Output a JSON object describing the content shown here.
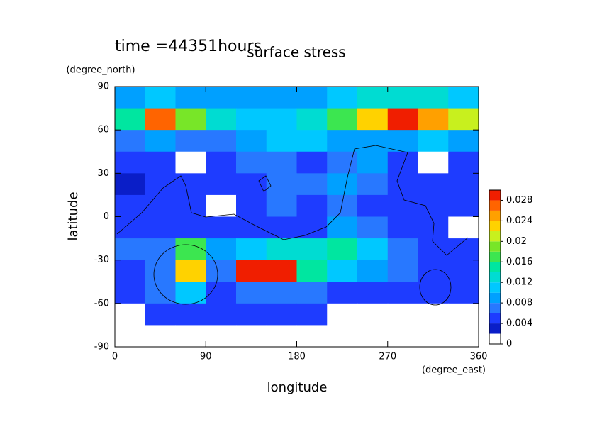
{
  "chart_data": {
    "type": "heatmap",
    "title": "time =44351hours",
    "subtitle": "surface stress",
    "x_label": "longitude",
    "x_unit": "(degree_east)",
    "y_label": "latitude",
    "y_unit": "(degree_north)",
    "xlim": [
      0,
      360
    ],
    "xticks": [
      0,
      90,
      180,
      270,
      360
    ],
    "ylim": [
      -90,
      90
    ],
    "yticks": [
      -90,
      -60,
      -30,
      0,
      30,
      60,
      90
    ],
    "x_edges": [
      0,
      30,
      60,
      90,
      120,
      150,
      180,
      210,
      240,
      270,
      300,
      330,
      360
    ],
    "y_edges": [
      90,
      75,
      60,
      45,
      30,
      15,
      0,
      -15,
      -30,
      -45,
      -60,
      -75,
      -90
    ],
    "values": [
      [
        0.008,
        0.01,
        0.008,
        0.008,
        0.008,
        0.008,
        0.008,
        0.01,
        0.012,
        0.012,
        0.012,
        0.01
      ],
      [
        0.014,
        0.026,
        0.018,
        0.012,
        0.01,
        0.01,
        0.012,
        0.016,
        0.022,
        0.028,
        0.024,
        0.02
      ],
      [
        0.006,
        0.008,
        0.006,
        0.006,
        0.008,
        0.01,
        0.01,
        0.008,
        0.008,
        0.008,
        0.01,
        0.008
      ],
      [
        0.004,
        0.004,
        0.001,
        0.004,
        0.006,
        0.006,
        0.004,
        0.006,
        0.008,
        0.004,
        0.001,
        0.004
      ],
      [
        0.002,
        0.004,
        0.004,
        0.004,
        0.004,
        0.006,
        0.006,
        0.008,
        0.006,
        0.004,
        0.004,
        0.004
      ],
      [
        0.004,
        0.004,
        0.004,
        0.001,
        0.004,
        0.006,
        0.004,
        0.006,
        0.004,
        0.004,
        0.004,
        0.004
      ],
      [
        0.004,
        0.004,
        0.004,
        0.004,
        0.004,
        0.004,
        0.004,
        0.008,
        0.006,
        0.004,
        0.004,
        0.001
      ],
      [
        0.006,
        0.006,
        0.016,
        0.008,
        0.01,
        0.012,
        0.012,
        0.014,
        0.01,
        0.006,
        0.004,
        0.004
      ],
      [
        0.004,
        0.006,
        0.022,
        0.006,
        0.03,
        0.03,
        0.014,
        0.01,
        0.008,
        0.006,
        0.004,
        0.004
      ],
      [
        0.004,
        0.006,
        0.01,
        0.004,
        0.006,
        0.006,
        0.006,
        0.004,
        0.004,
        0.004,
        0.004,
        0.004
      ],
      [
        0.001,
        0.004,
        0.004,
        0.004,
        0.004,
        0.004,
        0.004,
        0.001,
        0.001,
        0.001,
        0.001,
        0.001
      ],
      [
        0,
        0,
        0,
        0,
        0,
        0,
        0,
        0,
        0,
        0,
        0,
        0
      ]
    ],
    "levels": [
      0,
      0.002,
      0.004,
      0.006,
      0.008,
      0.01,
      0.012,
      0.014,
      0.016,
      0.018,
      0.02,
      0.022,
      0.024,
      0.026,
      0.028,
      0.03
    ],
    "colors": [
      "#ffffff",
      "#0a1ec8",
      "#1e3cff",
      "#2878ff",
      "#00a0ff",
      "#00c8ff",
      "#00dcd2",
      "#00e6a0",
      "#3ce650",
      "#78e628",
      "#c8f01e",
      "#ffd200",
      "#ffa000",
      "#ff6400",
      "#f01e00"
    ],
    "colorbar_ticks": [
      0,
      0.004,
      0.008,
      0.012,
      0.016,
      0.02,
      0.024,
      0.028
    ]
  }
}
